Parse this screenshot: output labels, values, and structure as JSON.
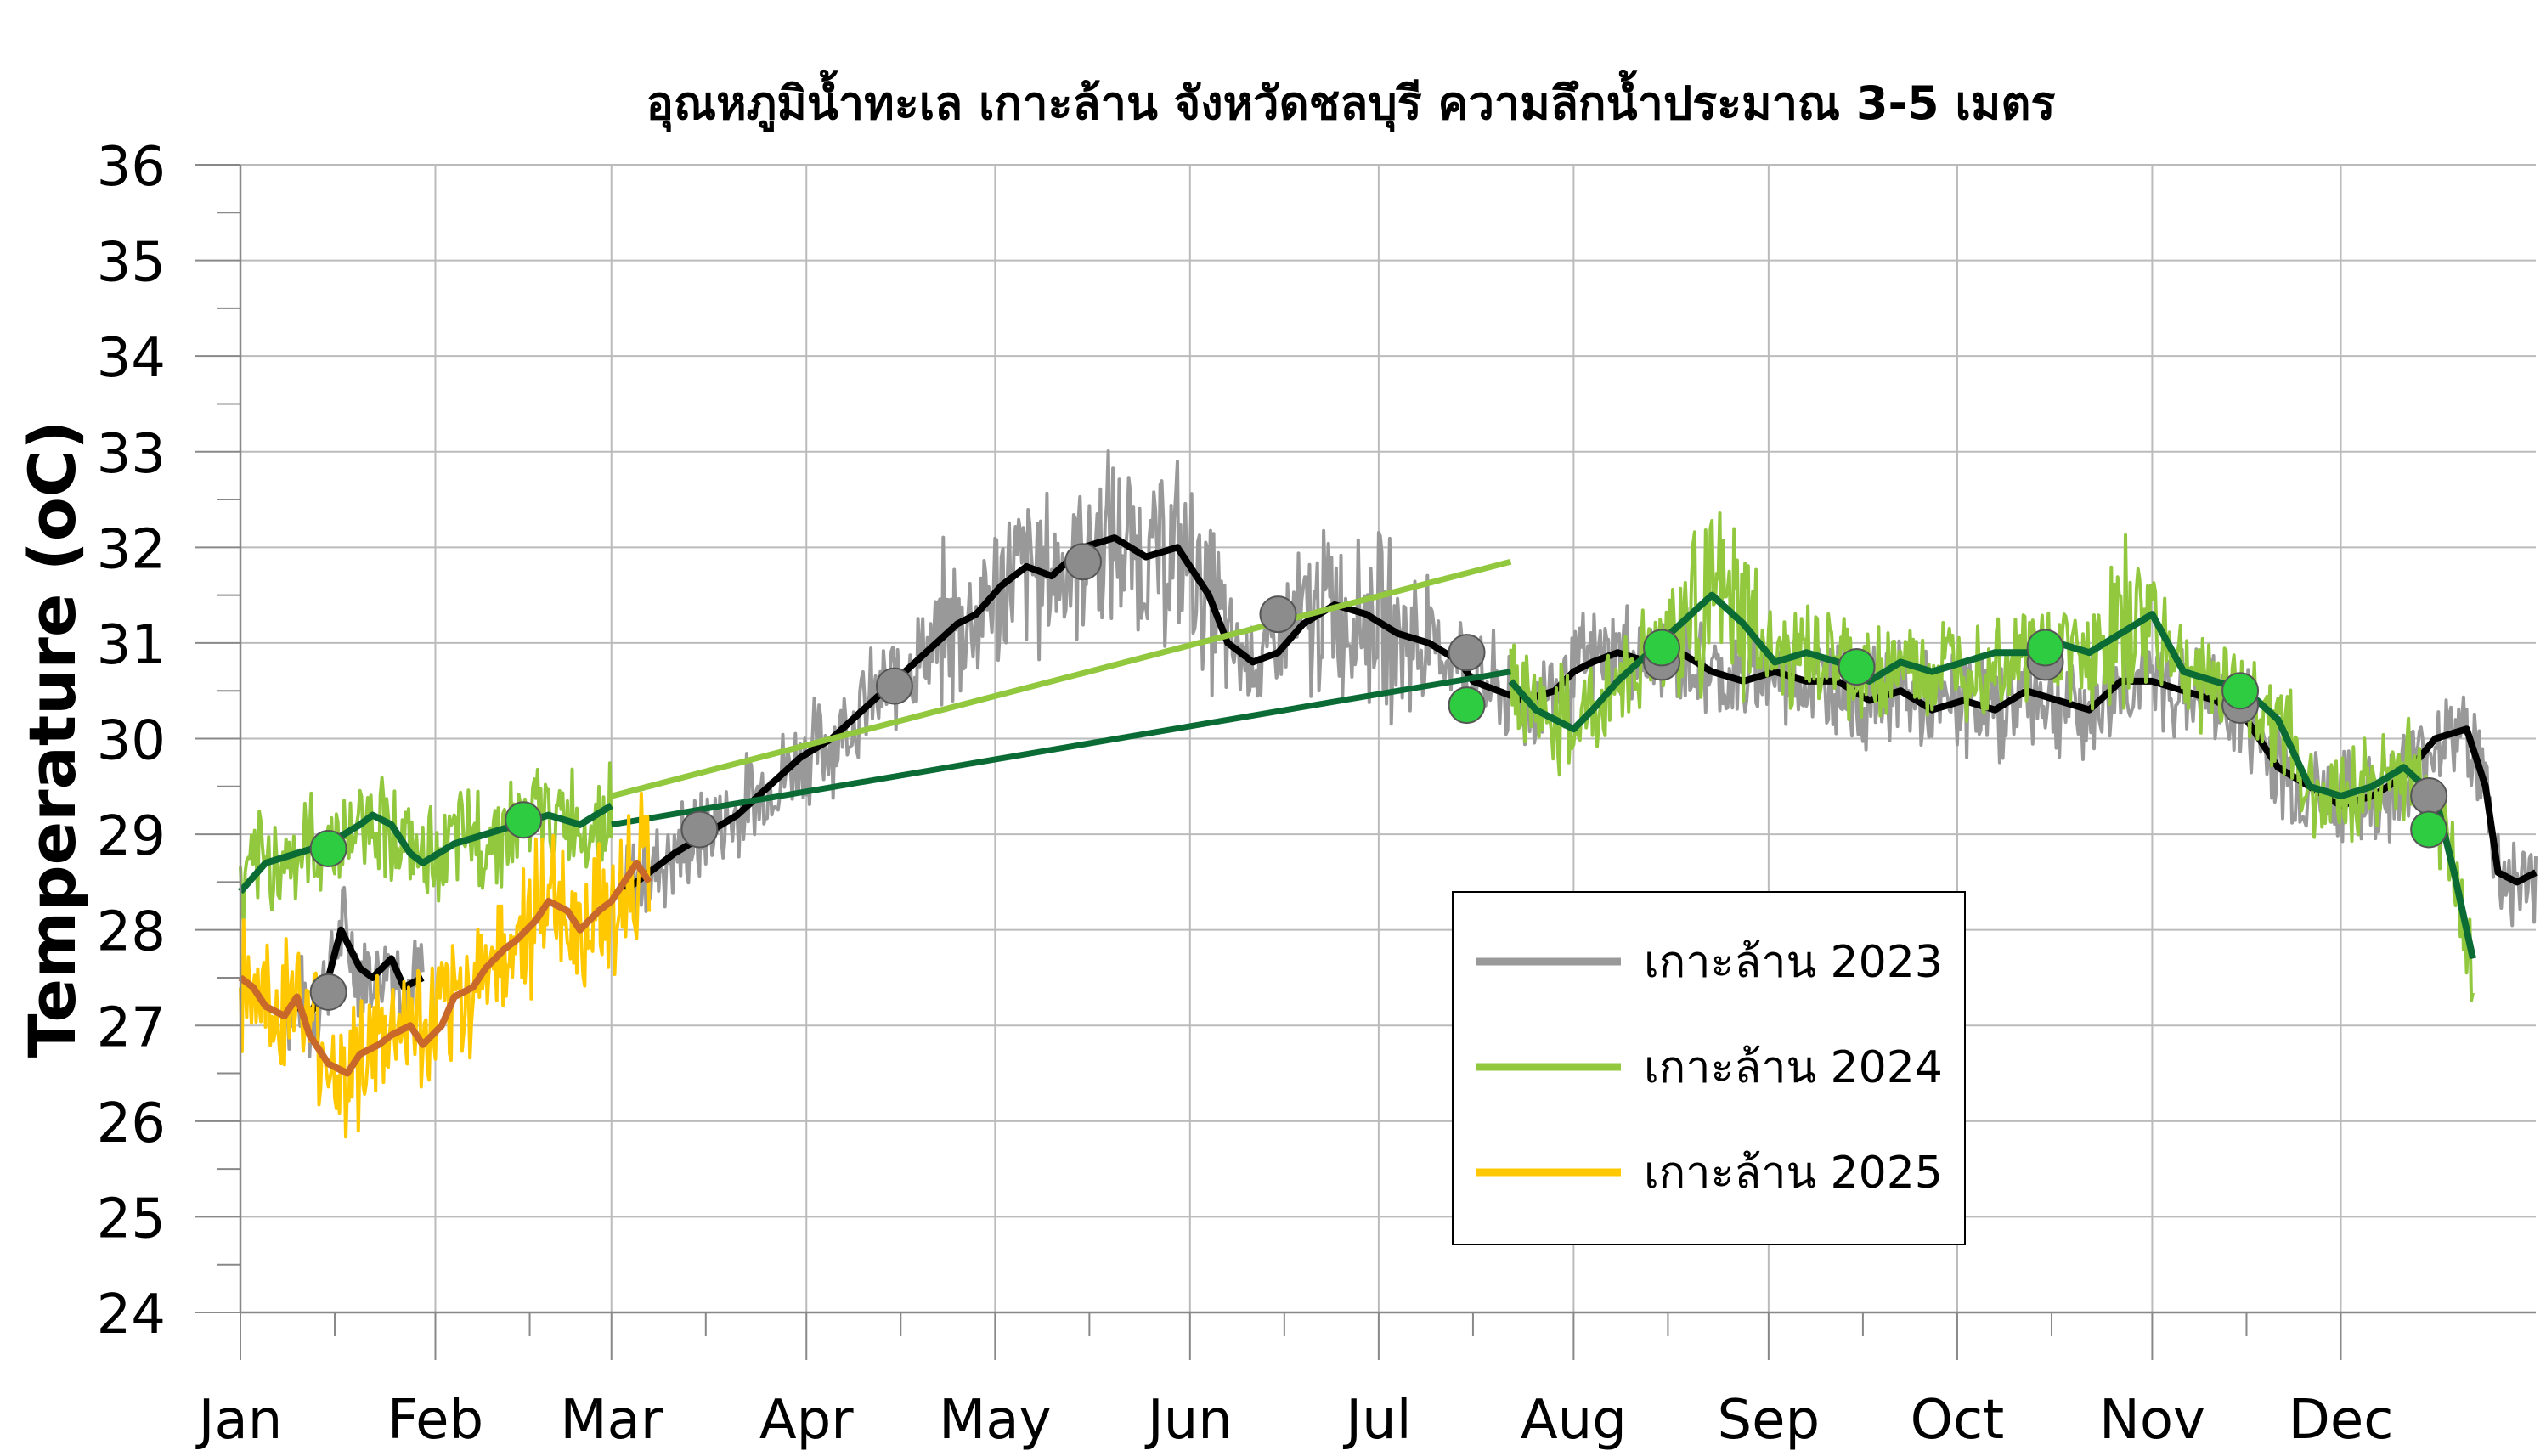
{
  "chart_data": {
    "type": "line",
    "title": "อุณหภูมิน้ำทะเล เกาะล้าน จังหวัดชลบุรี ความลึกน้ำประมาณ 3-5 เมตร",
    "xlabel": "",
    "ylabel": "Temperature (oC)",
    "ylim": [
      24,
      36
    ],
    "yticks": [
      24,
      25,
      26,
      27,
      28,
      29,
      30,
      31,
      32,
      33,
      34,
      35,
      36
    ],
    "xlim": [
      1,
      366
    ],
    "month_labels": [
      "Jan",
      "Feb",
      "Mar",
      "Apr",
      "May",
      "Jun",
      "Jul",
      "Aug",
      "Sep",
      "Oct",
      "Nov",
      "Dec"
    ],
    "month_start_days": [
      1,
      32,
      60,
      91,
      121,
      152,
      182,
      213,
      244,
      274,
      305,
      335
    ],
    "grid": true,
    "legend_position": "lower-right",
    "colors": {
      "raw_2023": "#999999",
      "mean_2023": "#000000",
      "raw_2024": "#92c83e",
      "mean_2024": "#0a6b35",
      "raw_2025": "#ffc800",
      "mean_2025": "#c8682a",
      "marker_2024": "#2ecc40",
      "marker_2023": "#8c8c8c"
    },
    "legend": [
      {
        "label": "เกาะล้าน 2023",
        "color": "#999999"
      },
      {
        "label": "เกาะล้าน 2024",
        "color": "#92c83e"
      },
      {
        "label": "เกาะล้าน 2025",
        "color": "#ffc800"
      }
    ],
    "series": [
      {
        "name": "เกาะล้าน 2023",
        "band_color": "#999999",
        "mean_color": "#000000",
        "segments": [
          {
            "x": [
              8,
              12,
              15,
              17,
              20,
              22,
              25,
              27,
              30
            ],
            "y": [
              27.3,
              27.1,
              27.5,
              28.0,
              27.6,
              27.5,
              27.7,
              27.4,
              27.5
            ]
          },
          {
            "x": [
              62,
              66,
              70,
              75,
              80,
              85,
              90,
              95,
              100,
              105,
              110,
              115,
              118,
              122,
              126,
              130,
              135,
              140,
              145,
              150,
              155,
              158,
              162,
              166,
              170,
              175,
              180,
              185,
              190,
              195,
              197,
              201,
              205,
              210,
              213,
              216,
              220,
              225,
              230,
              235,
              240,
              245,
              250,
              255,
              260,
              265,
              270,
              275,
              280,
              285,
              290,
              295,
              300,
              305,
              310,
              315,
              320,
              325,
              330,
              335,
              340,
              345,
              350,
              355,
              358,
              360,
              363,
              366
            ],
            "y": [
              28.4,
              28.6,
              28.8,
              29.0,
              29.2,
              29.5,
              29.8,
              30.0,
              30.3,
              30.6,
              30.9,
              31.2,
              31.3,
              31.6,
              31.8,
              31.7,
              32.0,
              32.1,
              31.9,
              32.0,
              31.5,
              31.0,
              30.8,
              30.9,
              31.2,
              31.4,
              31.3,
              31.1,
              31.0,
              30.8,
              30.6,
              30.5,
              30.4,
              30.5,
              30.7,
              30.8,
              30.9,
              30.8,
              30.9,
              30.7,
              30.6,
              30.7,
              30.6,
              30.6,
              30.4,
              30.5,
              30.3,
              30.4,
              30.3,
              30.5,
              30.4,
              30.3,
              30.6,
              30.6,
              30.5,
              30.4,
              30.2,
              29.7,
              29.5,
              29.3,
              29.4,
              29.6,
              30.0,
              30.1,
              29.5,
              28.6,
              28.5,
              28.6
            ]
          }
        ],
        "markers": {
          "color": "#8c8c8c",
          "x": [
            15,
            74,
            105,
            135,
            166,
            196,
            227,
            258,
            288,
            319,
            349
          ],
          "y": [
            27.35,
            29.05,
            30.55,
            31.85,
            31.3,
            30.9,
            30.8,
            30.75,
            30.8,
            30.35,
            29.4
          ]
        }
      },
      {
        "name": "เกาะล้าน 2024",
        "band_color": "#92c83e",
        "mean_color": "#0a6b35",
        "segments": [
          {
            "x": [
              1,
              5,
              10,
              15,
              20,
              22,
              25,
              28,
              30,
              35,
              40,
              45,
              50,
              55,
              60
            ],
            "y": [
              28.4,
              28.7,
              28.8,
              28.9,
              29.1,
              29.2,
              29.1,
              28.8,
              28.7,
              28.9,
              29.0,
              29.1,
              29.2,
              29.1,
              29.3
            ]
          },
          {
            "x": [
              203,
              207,
              210,
              213,
              216,
              220,
              225,
              230,
              235,
              240,
              245,
              250,
              255,
              260,
              265,
              270,
              275,
              280,
              285,
              290,
              295,
              300,
              305,
              310,
              315,
              320,
              325,
              330,
              335,
              340,
              345,
              350,
              353,
              356
            ],
            "y": [
              30.6,
              30.3,
              30.2,
              30.1,
              30.3,
              30.6,
              30.9,
              31.2,
              31.5,
              31.2,
              30.8,
              30.9,
              30.8,
              30.6,
              30.8,
              30.7,
              30.8,
              30.9,
              30.9,
              31.0,
              30.9,
              31.1,
              31.3,
              30.7,
              30.6,
              30.5,
              30.2,
              29.5,
              29.4,
              29.5,
              29.7,
              29.4,
              28.6,
              27.7
            ]
          }
        ],
        "connectors": [
          {
            "x": [
              60,
              203
            ],
            "y": [
              29.4,
              31.85
            ],
            "color": "#92c83e"
          },
          {
            "x": [
              60,
              203
            ],
            "y": [
              29.1,
              30.7
            ],
            "color": "#0a6b35"
          }
        ],
        "markers": {
          "color": "#2ecc40",
          "x": [
            15,
            46,
            196,
            227,
            258,
            288,
            319,
            349
          ],
          "y": [
            28.85,
            29.15,
            30.35,
            30.95,
            30.75,
            30.95,
            30.5,
            29.05
          ]
        }
      },
      {
        "name": "เกาะล้าน 2025",
        "band_color": "#ffc800",
        "mean_color": "#c8682a",
        "segments": [
          {
            "x": [
              1,
              3,
              5,
              8,
              10,
              12,
              15,
              18,
              20,
              23,
              25,
              28,
              30,
              33,
              35,
              38,
              40,
              43,
              45,
              48,
              50,
              53,
              55,
              58,
              60,
              62,
              64,
              66
            ],
            "y": [
              27.5,
              27.4,
              27.2,
              27.1,
              27.3,
              26.9,
              26.6,
              26.5,
              26.7,
              26.8,
              26.9,
              27.0,
              26.8,
              27.0,
              27.3,
              27.4,
              27.6,
              27.8,
              27.9,
              28.1,
              28.3,
              28.2,
              28.0,
              28.2,
              28.3,
              28.5,
              28.7,
              28.5
            ]
          }
        ]
      }
    ]
  }
}
